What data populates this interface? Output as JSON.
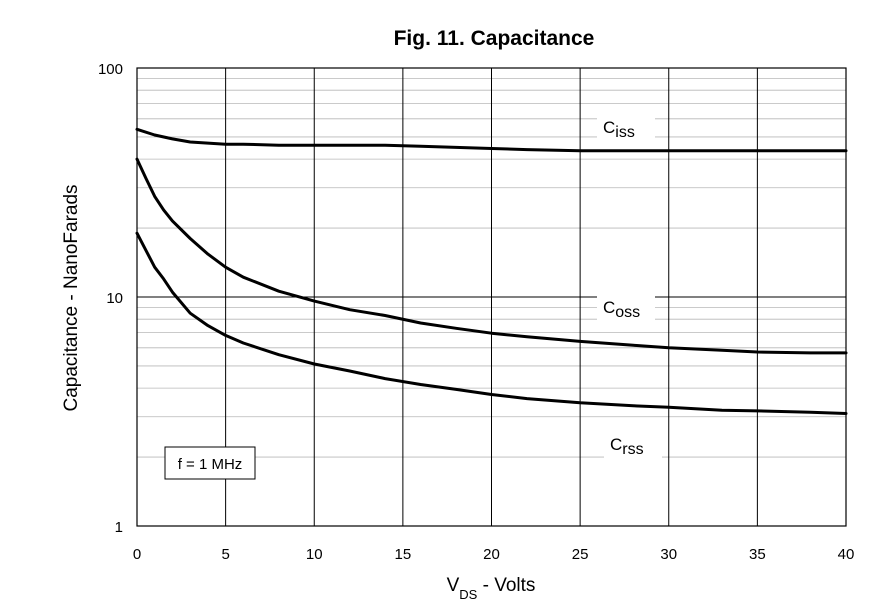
{
  "chart_data": {
    "type": "line",
    "title": "Fig. 11. Capacitance",
    "xlabel": {
      "main": "V",
      "sub": "DS",
      "rest": " - Volts"
    },
    "ylabel": "Capacitance - NanoFarads",
    "xlim": [
      0,
      40
    ],
    "ylim": [
      1,
      100
    ],
    "yscale": "log",
    "grid": true,
    "x_ticks": [
      0,
      5,
      10,
      15,
      20,
      25,
      30,
      35,
      40
    ],
    "x_tick_labels": [
      "0",
      "5",
      "10",
      "15",
      "20",
      "25",
      "30",
      "35",
      "40"
    ],
    "y_ticks": [
      1,
      10,
      100
    ],
    "y_tick_labels": [
      "1",
      "10",
      "100"
    ],
    "series": [
      {
        "name": "Ciss",
        "label_main": "C",
        "label_sub": "iss",
        "x": [
          0,
          1,
          2,
          3,
          4,
          5,
          6,
          8,
          10,
          12,
          14,
          16,
          18,
          20,
          22,
          25,
          30,
          35,
          40
        ],
        "y": [
          54,
          51,
          49,
          47.5,
          47,
          46.5,
          46.5,
          46,
          46,
          46,
          46,
          45.5,
          45,
          44.5,
          44,
          43.5,
          43.5,
          43.5,
          43.5
        ]
      },
      {
        "name": "Coss",
        "label_main": "C",
        "label_sub": "oss",
        "x": [
          0,
          0.5,
          1,
          1.5,
          2,
          3,
          4,
          5,
          6,
          8,
          10,
          12,
          14,
          16,
          18,
          20,
          22,
          25,
          28,
          30,
          33,
          35,
          38,
          40
        ],
        "y": [
          40,
          33,
          27.5,
          24,
          21.5,
          18,
          15.4,
          13.5,
          12.2,
          10.6,
          9.6,
          8.8,
          8.3,
          7.7,
          7.3,
          6.95,
          6.7,
          6.4,
          6.15,
          6.0,
          5.85,
          5.75,
          5.7,
          5.7
        ]
      },
      {
        "name": "Crss",
        "label_main": "C",
        "label_sub": "rss",
        "x": [
          0,
          0.5,
          1,
          1.5,
          2,
          3,
          4,
          5,
          6,
          8,
          10,
          12,
          14,
          16,
          18,
          20,
          22,
          25,
          28,
          30,
          33,
          35,
          38,
          40
        ],
        "y": [
          19,
          16,
          13.5,
          12,
          10.5,
          8.5,
          7.5,
          6.8,
          6.3,
          5.6,
          5.1,
          4.75,
          4.4,
          4.15,
          3.95,
          3.75,
          3.6,
          3.45,
          3.35,
          3.3,
          3.2,
          3.18,
          3.14,
          3.1
        ]
      }
    ],
    "annotation": "f = 1 MHz"
  }
}
